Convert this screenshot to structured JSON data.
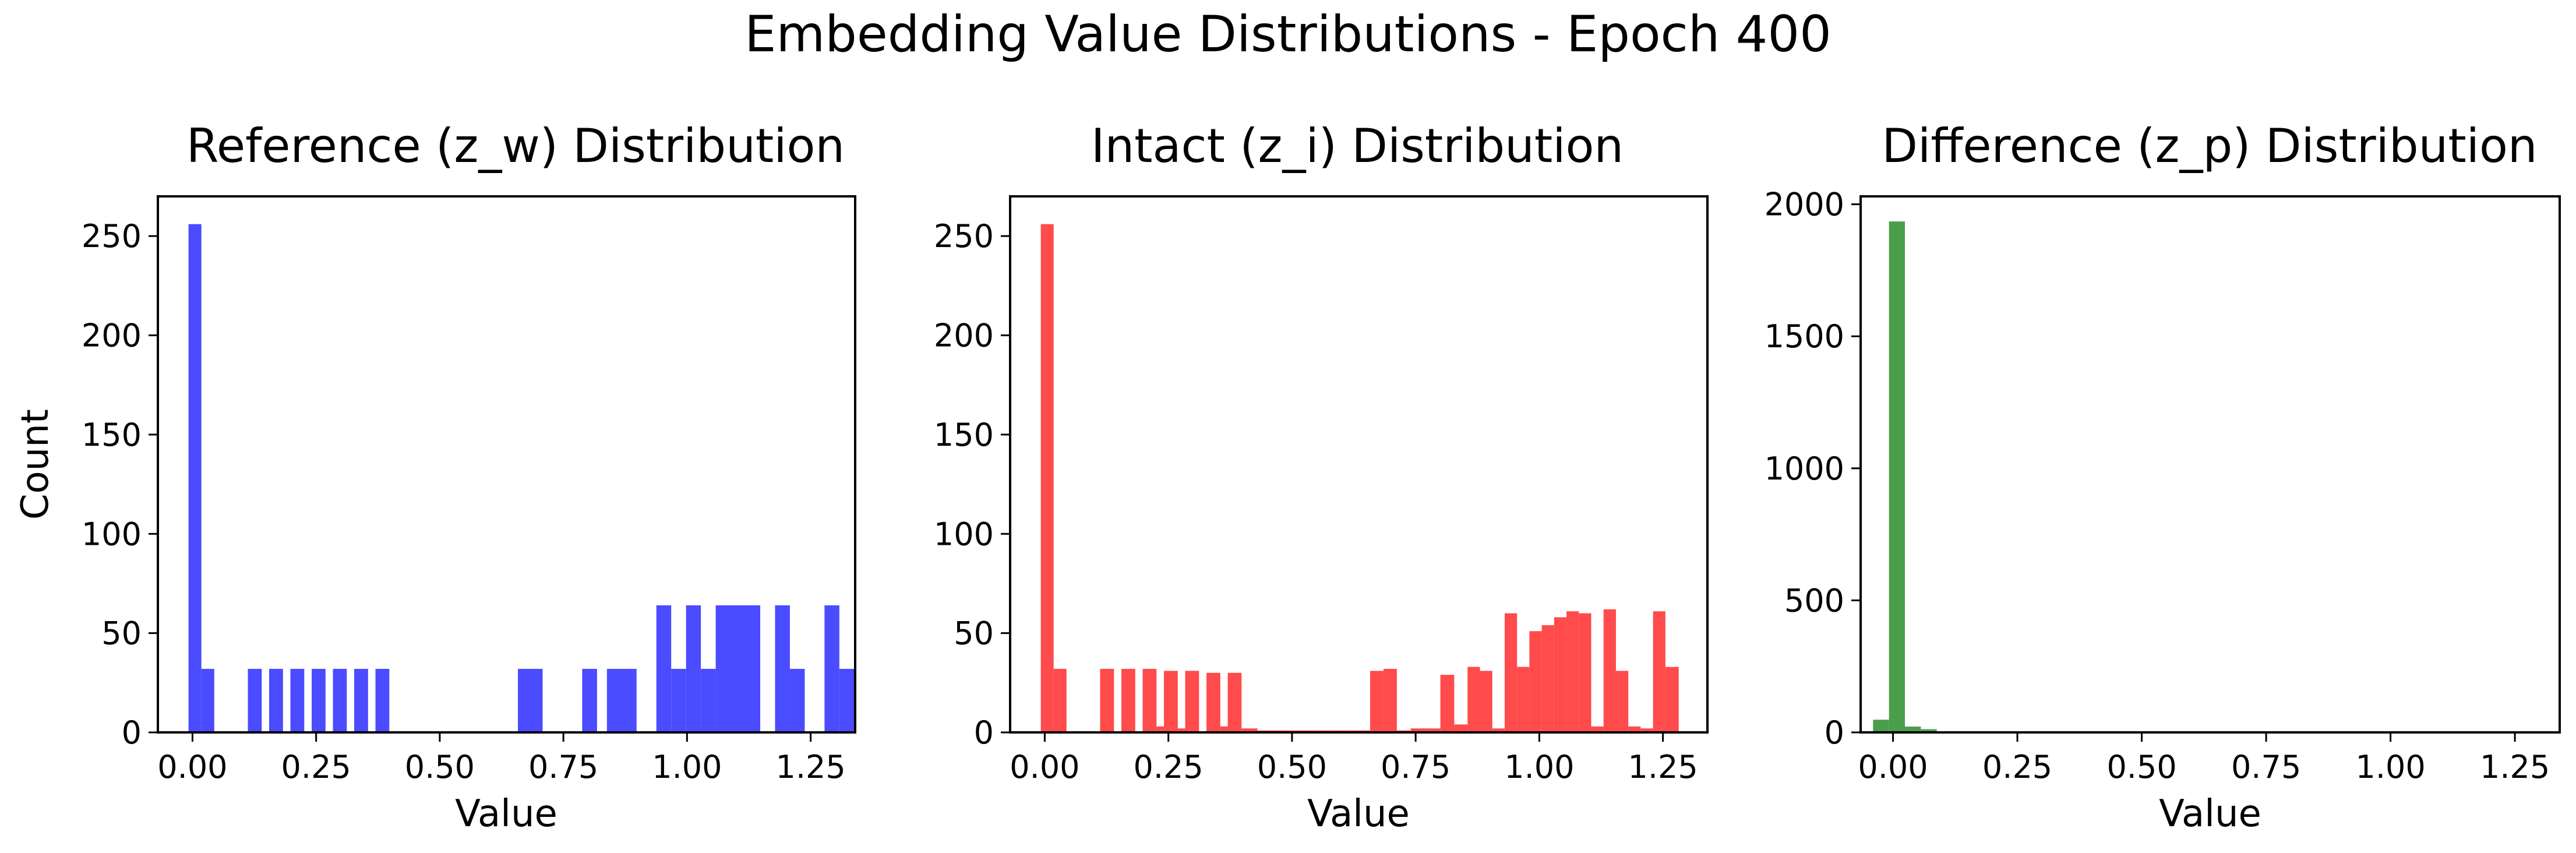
{
  "figure": {
    "title": "Embedding Value Distributions - Epoch 400"
  },
  "chart_data": [
    {
      "type": "bar",
      "title": "Reference (z_w) Distribution",
      "xlabel": "Value",
      "ylabel": "Count",
      "color": "#4B4BFF",
      "xlim": [
        -0.07,
        1.34
      ],
      "ylim": [
        0,
        270
      ],
      "xticks": [
        "0.00",
        "0.25",
        "0.50",
        "0.75",
        "1.00",
        "1.25"
      ],
      "yticks": [
        "0",
        "50",
        "100",
        "150",
        "200",
        "250"
      ],
      "bins": [
        {
          "x0": -0.008,
          "x1": 0.018,
          "count": 256
        },
        {
          "x0": 0.018,
          "x1": 0.044,
          "count": 32
        },
        {
          "x0": 0.112,
          "x1": 0.14,
          "count": 32
        },
        {
          "x0": 0.155,
          "x1": 0.183,
          "count": 32
        },
        {
          "x0": 0.198,
          "x1": 0.226,
          "count": 32
        },
        {
          "x0": 0.241,
          "x1": 0.269,
          "count": 32
        },
        {
          "x0": 0.284,
          "x1": 0.312,
          "count": 32
        },
        {
          "x0": 0.327,
          "x1": 0.355,
          "count": 32
        },
        {
          "x0": 0.37,
          "x1": 0.398,
          "count": 32
        },
        {
          "x0": 0.658,
          "x1": 0.708,
          "count": 32
        },
        {
          "x0": 0.788,
          "x1": 0.818,
          "count": 32
        },
        {
          "x0": 0.838,
          "x1": 0.898,
          "count": 32
        },
        {
          "x0": 0.938,
          "x1": 0.968,
          "count": 64
        },
        {
          "x0": 0.968,
          "x1": 0.998,
          "count": 32
        },
        {
          "x0": 0.998,
          "x1": 1.028,
          "count": 64
        },
        {
          "x0": 1.028,
          "x1": 1.058,
          "count": 32
        },
        {
          "x0": 1.058,
          "x1": 1.148,
          "count": 64
        },
        {
          "x0": 1.178,
          "x1": 1.208,
          "count": 64
        },
        {
          "x0": 1.208,
          "x1": 1.238,
          "count": 32
        },
        {
          "x0": 1.278,
          "x1": 1.308,
          "count": 64
        },
        {
          "x0": 1.308,
          "x1": 1.34,
          "count": 32
        }
      ]
    },
    {
      "type": "bar",
      "title": "Intact (z_i) Distribution",
      "xlabel": "Value",
      "ylabel": "",
      "color": "#FF4B4B",
      "xlim": [
        -0.07,
        1.34
      ],
      "ylim": [
        0,
        270
      ],
      "xticks": [
        "0.00",
        "0.25",
        "0.50",
        "0.75",
        "1.00",
        "1.25"
      ],
      "yticks": [
        "0",
        "50",
        "100",
        "150",
        "200",
        "250"
      ],
      "bins": [
        {
          "x0": -0.008,
          "x1": 0.018,
          "count": 256
        },
        {
          "x0": 0.018,
          "x1": 0.044,
          "count": 32
        },
        {
          "x0": 0.112,
          "x1": 0.14,
          "count": 32
        },
        {
          "x0": 0.155,
          "x1": 0.183,
          "count": 32
        },
        {
          "x0": 0.198,
          "x1": 0.226,
          "count": 32
        },
        {
          "x0": 0.226,
          "x1": 0.241,
          "count": 3
        },
        {
          "x0": 0.241,
          "x1": 0.269,
          "count": 31
        },
        {
          "x0": 0.269,
          "x1": 0.284,
          "count": 2
        },
        {
          "x0": 0.284,
          "x1": 0.312,
          "count": 31
        },
        {
          "x0": 0.327,
          "x1": 0.355,
          "count": 30
        },
        {
          "x0": 0.355,
          "x1": 0.37,
          "count": 3
        },
        {
          "x0": 0.37,
          "x1": 0.398,
          "count": 30
        },
        {
          "x0": 0.398,
          "x1": 0.43,
          "count": 2
        },
        {
          "x0": 0.43,
          "x1": 0.46,
          "count": 1
        },
        {
          "x0": 0.46,
          "x1": 0.49,
          "count": 1
        },
        {
          "x0": 0.49,
          "x1": 0.52,
          "count": 1
        },
        {
          "x0": 0.52,
          "x1": 0.55,
          "count": 1
        },
        {
          "x0": 0.55,
          "x1": 0.58,
          "count": 1
        },
        {
          "x0": 0.58,
          "x1": 0.62,
          "count": 1
        },
        {
          "x0": 0.62,
          "x1": 0.658,
          "count": 1
        },
        {
          "x0": 0.658,
          "x1": 0.685,
          "count": 31
        },
        {
          "x0": 0.685,
          "x1": 0.712,
          "count": 32
        },
        {
          "x0": 0.712,
          "x1": 0.74,
          "count": 1
        },
        {
          "x0": 0.74,
          "x1": 0.77,
          "count": 2
        },
        {
          "x0": 0.77,
          "x1": 0.8,
          "count": 2
        },
        {
          "x0": 0.8,
          "x1": 0.828,
          "count": 29
        },
        {
          "x0": 0.828,
          "x1": 0.855,
          "count": 4
        },
        {
          "x0": 0.855,
          "x1": 0.88,
          "count": 33
        },
        {
          "x0": 0.88,
          "x1": 0.905,
          "count": 31
        },
        {
          "x0": 0.905,
          "x1": 0.93,
          "count": 2
        },
        {
          "x0": 0.93,
          "x1": 0.955,
          "count": 60
        },
        {
          "x0": 0.955,
          "x1": 0.98,
          "count": 33
        },
        {
          "x0": 0.98,
          "x1": 1.005,
          "count": 51
        },
        {
          "x0": 1.005,
          "x1": 1.03,
          "count": 54
        },
        {
          "x0": 1.03,
          "x1": 1.055,
          "count": 58
        },
        {
          "x0": 1.055,
          "x1": 1.08,
          "count": 61
        },
        {
          "x0": 1.08,
          "x1": 1.105,
          "count": 60
        },
        {
          "x0": 1.105,
          "x1": 1.13,
          "count": 3
        },
        {
          "x0": 1.13,
          "x1": 1.155,
          "count": 62
        },
        {
          "x0": 1.155,
          "x1": 1.18,
          "count": 31
        },
        {
          "x0": 1.18,
          "x1": 1.205,
          "count": 3
        },
        {
          "x0": 1.205,
          "x1": 1.23,
          "count": 2
        },
        {
          "x0": 1.23,
          "x1": 1.255,
          "count": 61
        },
        {
          "x0": 1.255,
          "x1": 1.282,
          "count": 33
        }
      ]
    },
    {
      "type": "bar",
      "title": "Difference (z_p) Distribution",
      "xlabel": "Value",
      "ylabel": "",
      "color": "#4B9E4B",
      "xlim": [
        -0.065,
        1.34
      ],
      "ylim": [
        0,
        2030
      ],
      "xticks": [
        "0.00",
        "0.25",
        "0.50",
        "0.75",
        "1.00",
        "1.25"
      ],
      "yticks": [
        "0",
        "500",
        "1000",
        "1500",
        "2000"
      ],
      "bins": [
        {
          "x0": -0.04,
          "x1": -0.008,
          "count": 48
        },
        {
          "x0": -0.008,
          "x1": 0.024,
          "count": 1935
        },
        {
          "x0": 0.024,
          "x1": 0.056,
          "count": 22
        },
        {
          "x0": 0.056,
          "x1": 0.088,
          "count": 12
        },
        {
          "x0": 0.088,
          "x1": 0.12,
          "count": 3
        },
        {
          "x0": 0.12,
          "x1": 0.152,
          "count": 2
        },
        {
          "x0": 0.152,
          "x1": 0.2,
          "count": 1
        }
      ]
    }
  ]
}
